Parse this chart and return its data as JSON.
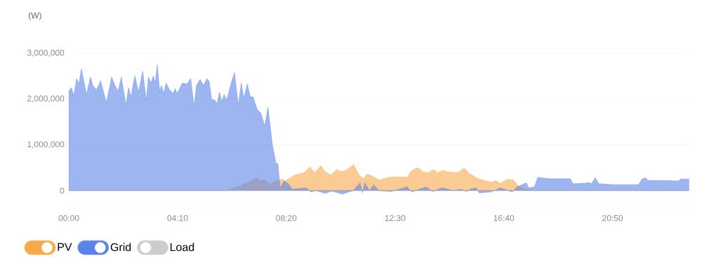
{
  "chart_data": {
    "type": "area",
    "ylabel": "(W)",
    "xlim": [
      0,
      23.8
    ],
    "ylim": [
      -380000,
      3000000
    ],
    "xticks": [
      {
        "value": 0,
        "label": "00:00"
      },
      {
        "value": 4.1667,
        "label": "04:10"
      },
      {
        "value": 8.3333,
        "label": "08:20"
      },
      {
        "value": 12.5,
        "label": "12:30"
      },
      {
        "value": 16.6667,
        "label": "16:40"
      },
      {
        "value": 20.8333,
        "label": "20:50"
      }
    ],
    "yticks": [
      {
        "value": 0,
        "label": "0"
      },
      {
        "value": 1000000,
        "label": "1,000,000"
      },
      {
        "value": 2000000,
        "label": "2,000,000"
      },
      {
        "value": 3000000,
        "label": "3,000,000"
      }
    ],
    "grid": "y",
    "legend": "bottom left",
    "line_style": "solid",
    "series": [
      {
        "name": "PV",
        "color": "#f7a94b",
        "x": [
          0,
          6.05,
          6.59,
          6.95,
          7.2,
          7.31,
          7.49,
          7.72,
          7.94,
          8.16,
          8.3,
          8.66,
          9.01,
          9.24,
          9.42,
          9.66,
          9.82,
          10.04,
          10.27,
          10.45,
          10.67,
          10.91,
          11.12,
          11.3,
          11.43,
          11.66,
          11.88,
          12.24,
          12.6,
          12.96,
          13.14,
          13.36,
          13.58,
          13.76,
          13.98,
          14.12,
          14.34,
          14.5,
          14.88,
          15.15,
          15.38,
          15.69,
          16.18,
          16.36,
          16.53,
          16.8,
          17.03,
          17.21,
          17.44,
          17.88,
          23.76
        ],
        "values": [
          0,
          0,
          110000,
          210000,
          290000,
          210000,
          240000,
          140000,
          210000,
          250000,
          210000,
          340000,
          390000,
          520000,
          390000,
          540000,
          410000,
          340000,
          460000,
          410000,
          460000,
          570000,
          340000,
          260000,
          360000,
          310000,
          230000,
          290000,
          300000,
          290000,
          440000,
          500000,
          410000,
          390000,
          460000,
          390000,
          440000,
          410000,
          390000,
          490000,
          360000,
          260000,
          180000,
          220000,
          160000,
          250000,
          230000,
          110000,
          30000,
          0,
          0
        ]
      },
      {
        "name": "Grid",
        "color": "#5b84e8",
        "x": [
          0,
          0.1,
          0.19,
          0.3,
          0.39,
          0.48,
          0.68,
          0.83,
          0.92,
          1.06,
          1.22,
          1.44,
          1.64,
          1.77,
          1.89,
          2.01,
          2.19,
          2.29,
          2.38,
          2.53,
          2.67,
          2.83,
          2.97,
          3.05,
          3.15,
          3.24,
          3.31,
          3.39,
          3.48,
          3.55,
          3.63,
          3.73,
          3.86,
          4.0,
          4.07,
          4.15,
          4.35,
          4.53,
          4.67,
          4.8,
          4.89,
          5.03,
          5.16,
          5.3,
          5.38,
          5.47,
          5.61,
          5.68,
          5.77,
          5.86,
          5.95,
          6.05,
          6.22,
          6.35,
          6.49,
          6.61,
          6.7,
          6.84,
          6.95,
          7.06,
          7.22,
          7.36,
          7.51,
          7.63,
          7.8,
          7.94,
          8.01,
          8.1,
          8.25,
          8.39,
          8.57,
          8.75,
          9.1,
          9.28,
          9.46,
          9.82,
          10.09,
          10.48,
          10.89,
          11.16,
          11.25,
          11.34,
          11.52,
          11.68,
          11.88,
          12.33,
          12.96,
          13.14,
          13.68,
          13.94,
          14.3,
          14.75,
          15.02,
          15.24,
          15.38,
          15.6,
          15.73,
          16.18,
          16.53,
          16.99,
          17.17,
          17.53,
          17.61,
          17.84,
          17.97,
          18.42,
          19.22,
          19.31,
          19.81,
          19.9,
          20.03,
          20.17,
          20.3,
          20.84,
          21.83,
          21.96,
          22.1,
          22.18,
          22.9,
          23.35,
          23.44,
          23.76
        ],
        "values": [
          2170000,
          2250000,
          2070000,
          2450000,
          2330000,
          2660000,
          2100000,
          2480000,
          2300000,
          2200000,
          2400000,
          1920000,
          2480000,
          2300000,
          2170000,
          2480000,
          1870000,
          2250000,
          2050000,
          2510000,
          2150000,
          2610000,
          1970000,
          2480000,
          2350000,
          2510000,
          2350000,
          2750000,
          2170000,
          2300000,
          2120000,
          2350000,
          2200000,
          2120000,
          2230000,
          2120000,
          2350000,
          2330000,
          2450000,
          1840000,
          2300000,
          2430000,
          2300000,
          2450000,
          2380000,
          2000000,
          1970000,
          1890000,
          2150000,
          1940000,
          2100000,
          1970000,
          2350000,
          2580000,
          1870000,
          2350000,
          2020000,
          2330000,
          2050000,
          2050000,
          1770000,
          1690000,
          1410000,
          1820000,
          1000000,
          590000,
          590000,
          60000,
          210000,
          160000,
          30000,
          40000,
          60000,
          -30000,
          0,
          -60000,
          -10000,
          -80000,
          0,
          170000,
          -50000,
          170000,
          0,
          130000,
          0,
          -20000,
          80000,
          -30000,
          80000,
          -20000,
          60000,
          0,
          30000,
          -20000,
          30000,
          60000,
          -50000,
          -30000,
          60000,
          -30000,
          80000,
          170000,
          60000,
          80000,
          290000,
          260000,
          260000,
          150000,
          160000,
          180000,
          150000,
          280000,
          150000,
          130000,
          130000,
          250000,
          280000,
          220000,
          220000,
          210000,
          250000,
          250000
        ]
      },
      {
        "name": "Load",
        "color": "#cccccc"
      }
    ]
  }
}
